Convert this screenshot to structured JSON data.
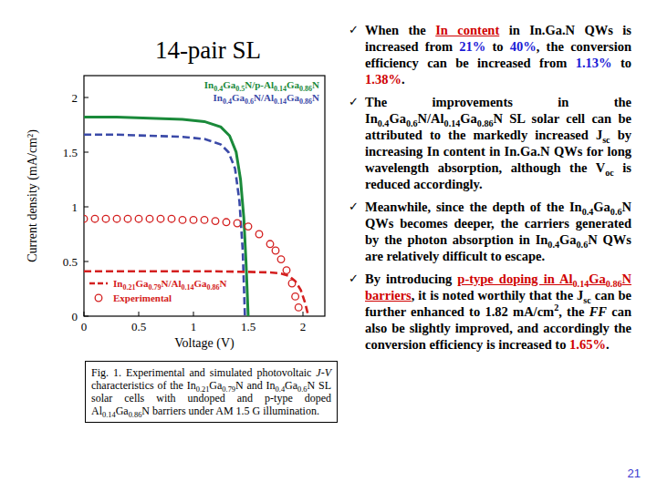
{
  "title": "14-pair SL",
  "chart_data": {
    "type": "line",
    "x_label": "Voltage (V)",
    "y_label": "Current density (mA/cm²)",
    "xlim": [
      0,
      2.2
    ],
    "ylim": [
      0,
      2.2
    ],
    "xticks": [
      0,
      0.5,
      1,
      1.5,
      2
    ],
    "yticks": [
      0,
      0.5,
      1,
      1.5,
      2
    ],
    "series": [
      {
        "name": "In0.4Ga0.5N/p-Al0.14Ga0.86N",
        "color": "#1a8a3a",
        "line_style": "solid",
        "x": [
          0,
          0.3,
          0.6,
          0.9,
          1.1,
          1.25,
          1.33,
          1.39,
          1.43,
          1.46,
          1.48,
          1.5
        ],
        "values": [
          1.82,
          1.82,
          1.81,
          1.8,
          1.78,
          1.73,
          1.65,
          1.5,
          1.25,
          0.9,
          0.5,
          0
        ]
      },
      {
        "name": "In0.4Ga0.6N/Al0.14Ga0.86N",
        "color": "#3b4aa8",
        "line_style": "dashed",
        "x": [
          0,
          0.3,
          0.6,
          0.9,
          1.1,
          1.25,
          1.32,
          1.38,
          1.42,
          1.45,
          1.47
        ],
        "values": [
          1.66,
          1.66,
          1.65,
          1.64,
          1.62,
          1.57,
          1.5,
          1.35,
          1.05,
          0.6,
          0
        ]
      },
      {
        "name": "In0.21Ga0.79N/Al0.14Ga0.86N",
        "color": "#d42020",
        "line_style": "dashed",
        "x": [
          0,
          0.4,
          0.8,
          1.2,
          1.5,
          1.7,
          1.8,
          1.87,
          1.93,
          1.98,
          2.02,
          2.05
        ],
        "values": [
          0.41,
          0.41,
          0.41,
          0.41,
          0.405,
          0.4,
          0.39,
          0.37,
          0.32,
          0.24,
          0.12,
          0
        ]
      },
      {
        "name": "Experimental",
        "color": "#d42020",
        "line_style": "none",
        "marker": "circle",
        "x": [
          0,
          0.1,
          0.2,
          0.3,
          0.4,
          0.5,
          0.6,
          0.7,
          0.8,
          0.9,
          1.0,
          1.1,
          1.2,
          1.3,
          1.4,
          1.5,
          1.6,
          1.7,
          1.75,
          1.8,
          1.85,
          1.9,
          1.93,
          1.96
        ],
        "values": [
          0.89,
          0.89,
          0.89,
          0.89,
          0.89,
          0.89,
          0.89,
          0.89,
          0.89,
          0.88,
          0.88,
          0.88,
          0.87,
          0.86,
          0.85,
          0.82,
          0.75,
          0.66,
          0.6,
          0.52,
          0.42,
          0.3,
          0.18,
          0.08
        ]
      }
    ]
  },
  "caption": [
    {
      "t": "Fig. 1. Experimental and simulated photovoltaic "
    },
    {
      "t": "J-V",
      "i": true
    },
    {
      "t": " characteristics of the In"
    },
    {
      "t": "0.21",
      "sub": true
    },
    {
      "t": "Ga"
    },
    {
      "t": "0.79",
      "sub": true
    },
    {
      "t": "N and In"
    },
    {
      "t": "0.4",
      "sub": true
    },
    {
      "t": "Ga"
    },
    {
      "t": "0.6",
      "sub": true
    },
    {
      "t": "N SL solar cells with undoped and p-type doped Al"
    },
    {
      "t": "0.14",
      "sub": true
    },
    {
      "t": "Ga"
    },
    {
      "t": "0.86",
      "sub": true
    },
    {
      "t": "N barriers under AM 1.5 G illumination."
    }
  ],
  "bullets": [
    [
      {
        "t": "When the "
      },
      {
        "t": "In content",
        "c": "#d00000",
        "u": true
      },
      {
        "t": " in In.Ga.N QWs is increased from "
      },
      {
        "t": "21%",
        "c": "#1a1ad6"
      },
      {
        "t": " to "
      },
      {
        "t": "40%",
        "c": "#1a1ad6"
      },
      {
        "t": ", the conversion efficiency can be increased from "
      },
      {
        "t": "1.13%",
        "c": "#1a1ad6"
      },
      {
        "t": " to "
      },
      {
        "t": "1.38%",
        "c": "#d00000"
      },
      {
        "t": "."
      }
    ],
    [
      {
        "t": "The improvements in the In"
      },
      {
        "t": "0.4",
        "sub": true
      },
      {
        "t": "Ga"
      },
      {
        "t": "0.6",
        "sub": true
      },
      {
        "t": "N/Al"
      },
      {
        "t": "0.14",
        "sub": true
      },
      {
        "t": "Ga"
      },
      {
        "t": "0.86",
        "sub": true
      },
      {
        "t": "N SL solar cell can be attributed to the markedly increased J"
      },
      {
        "t": "sc",
        "sub": true
      },
      {
        "t": " by increasing In content in In.Ga.N QWs for long wavelength absorption, although the V"
      },
      {
        "t": "oc",
        "sub": true
      },
      {
        "t": " is reduced accordingly."
      }
    ],
    [
      {
        "t": "Meanwhile, since the depth of the In"
      },
      {
        "t": "0.4",
        "sub": true
      },
      {
        "t": "Ga"
      },
      {
        "t": "0.6",
        "sub": true
      },
      {
        "t": "N QWs becomes deeper, the carriers generated by the photon absorption in In"
      },
      {
        "t": "0.4",
        "sub": true
      },
      {
        "t": "Ga"
      },
      {
        "t": "0.6",
        "sub": true
      },
      {
        "t": "N QWs are relatively difficult to escape."
      }
    ],
    [
      {
        "t": "By introducing "
      },
      {
        "t": "p-type doping in Al",
        "c": "#d00000",
        "u": true
      },
      {
        "t": "0.14",
        "sub": true,
        "c": "#d00000"
      },
      {
        "t": "Ga",
        "c": "#d00000",
        "u": true
      },
      {
        "t": "0.86",
        "sub": true,
        "c": "#d00000"
      },
      {
        "t": "N barriers",
        "c": "#d00000",
        "u": true
      },
      {
        "t": ", it is noted worthily that the J"
      },
      {
        "t": "sc",
        "sub": true
      },
      {
        "t": " can be further enhanced to 1.82 mA/cm"
      },
      {
        "t": "2",
        "sup": true
      },
      {
        "t": ", the "
      },
      {
        "t": "FF",
        "i": true
      },
      {
        "t": " can also be slightly improved, and accordingly the conversion efficiency is increased to "
      },
      {
        "t": "1.65%",
        "c": "#d00000"
      },
      {
        "t": "."
      }
    ]
  ],
  "page_number": "21"
}
